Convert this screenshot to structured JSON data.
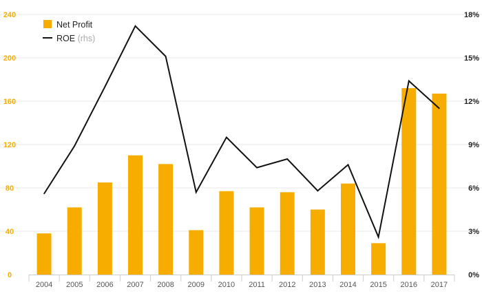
{
  "chart_data": {
    "type": "bar",
    "categories": [
      "2004",
      "2005",
      "2006",
      "2007",
      "2008",
      "2009",
      "2010",
      "2011",
      "2012",
      "2013",
      "2014",
      "2015",
      "2016",
      "2017"
    ],
    "series": [
      {
        "name": "Net Profit",
        "type": "bar",
        "axis": "left",
        "values": [
          38,
          62,
          85,
          110,
          102,
          41,
          77,
          62,
          76,
          60,
          84,
          29,
          172,
          167
        ]
      },
      {
        "name": "ROE",
        "name_suffix": "(rhs)",
        "type": "line",
        "axis": "right",
        "values": [
          5.6,
          8.9,
          13.0,
          17.2,
          15.1,
          5.7,
          9.5,
          7.4,
          8.0,
          5.8,
          7.6,
          2.6,
          13.4,
          11.5
        ]
      }
    ],
    "y_left": {
      "ticks": [
        "0",
        "40",
        "80",
        "120",
        "160",
        "200",
        "240"
      ],
      "lim": [
        0,
        240
      ]
    },
    "y_right": {
      "ticks": [
        "0%",
        "3%",
        "6%",
        "9%",
        "12%",
        "15%",
        "18%"
      ],
      "lim": [
        0,
        18
      ]
    },
    "grid": true,
    "legend_position": "top-left",
    "colors": {
      "bar": "#f7ad00",
      "line": "#111111",
      "left_ticks": "#f7ad00",
      "grid": "#e8e8e8"
    }
  }
}
